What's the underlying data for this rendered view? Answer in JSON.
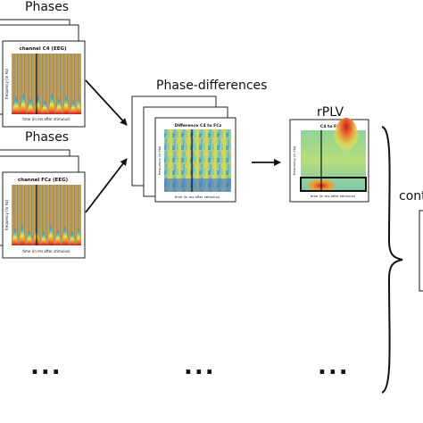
{
  "diagram": {
    "top_group": {
      "title": "Phases",
      "panel_title": "channel C4 (EEG)",
      "ylabel": "frequency (in Hz)",
      "xlabel": "time (in ms after stimulus)"
    },
    "bottom_group": {
      "title": "Phases",
      "panel_title": "channel FCz (EEG)",
      "ylabel": "frequency (in Hz)",
      "xlabel": "time (in ms after stimulus)"
    },
    "phase_diff": {
      "title": "Phase-differences",
      "panel_title": "Difference C4 to FCz",
      "ylabel": "frequency (in Hz)",
      "xlabel": "time (in ms after stimulus)"
    },
    "rplv": {
      "title": "rPLV",
      "panel_title": "C4 to FCz",
      "ylabel": "frequency (in Hz)",
      "xlabel": "time (in ms after stimulus)"
    },
    "right_label": "cont",
    "ellipsis": "..."
  }
}
